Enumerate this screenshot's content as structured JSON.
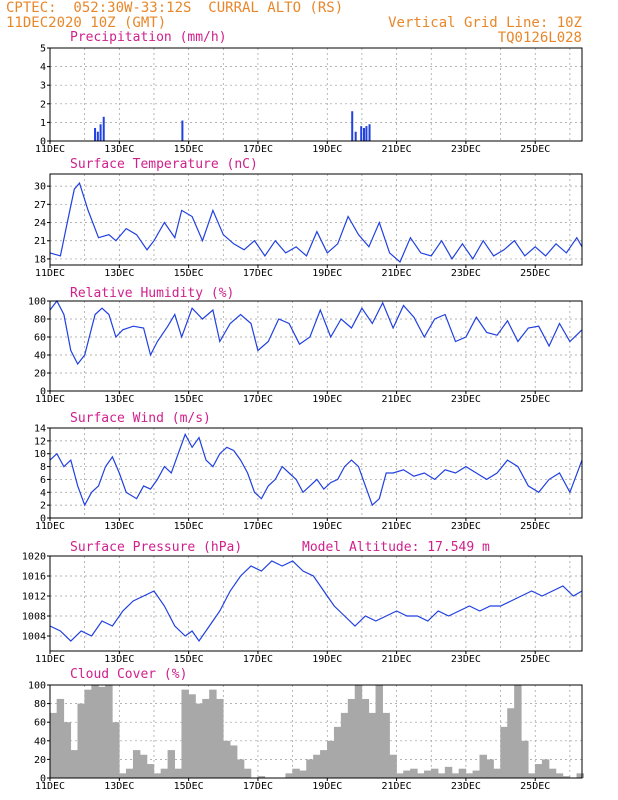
{
  "header": {
    "line1_left": "CPTEC:  052:30W-33:12S  CURRAL ALTO (RS)",
    "line2_left": "11DEC2020 10Z (GMT)",
    "line2_right": "Vertical Grid Line: 10Z",
    "line3_right": "TQ0126L028"
  },
  "colors": {
    "header": "#e8872a",
    "title": "#d0208c",
    "series": "#2040e0",
    "cloud": "#a8a8a8",
    "grid": "#9a9a9a"
  },
  "chart_data": [
    {
      "type": "bar",
      "title": "Precipitation (mm/h)",
      "x_range_days": [
        11,
        26.35
      ],
      "ylim": [
        0,
        5
      ],
      "yticks": [
        0,
        1,
        2,
        3,
        4,
        5
      ],
      "xtick_labels": [
        "11DEC",
        "13DEC",
        "15DEC",
        "17DEC",
        "19DEC",
        "21DEC",
        "23DEC",
        "25DEC"
      ],
      "x": [
        12.3,
        12.38,
        12.46,
        12.55,
        14.82,
        19.72,
        19.82,
        19.98,
        20.06,
        20.13,
        20.22
      ],
      "values": [
        0.7,
        0.5,
        0.9,
        1.3,
        1.1,
        1.6,
        0.5,
        0.8,
        0.7,
        0.8,
        0.9
      ]
    },
    {
      "type": "line",
      "title": "Surface Temperature (nC)",
      "ylim": [
        17,
        32
      ],
      "yticks": [
        18,
        21,
        24,
        27,
        30
      ],
      "xtick_labels": [
        "11DEC",
        "13DEC",
        "15DEC",
        "17DEC",
        "19DEC",
        "21DEC",
        "23DEC",
        "25DEC"
      ],
      "x": [
        11,
        11.3,
        11.5,
        11.7,
        11.85,
        12.1,
        12.4,
        12.7,
        12.9,
        13.2,
        13.5,
        13.8,
        14.0,
        14.3,
        14.6,
        14.8,
        15.1,
        15.4,
        15.7,
        16.0,
        16.3,
        16.6,
        16.9,
        17.2,
        17.5,
        17.8,
        18.1,
        18.4,
        18.7,
        19.0,
        19.3,
        19.6,
        19.9,
        20.2,
        20.5,
        20.8,
        21.1,
        21.4,
        21.7,
        22.0,
        22.3,
        22.6,
        22.9,
        23.2,
        23.5,
        23.8,
        24.1,
        24.4,
        24.7,
        25.0,
        25.3,
        25.6,
        25.9,
        26.2,
        26.35
      ],
      "values": [
        19,
        18.5,
        24,
        29.5,
        30.5,
        26,
        21.5,
        22,
        21,
        23,
        22,
        19.5,
        21,
        24,
        21.5,
        26,
        25,
        21,
        26,
        22,
        20.5,
        19.5,
        21,
        18.5,
        21,
        19,
        20,
        18.5,
        22.5,
        19,
        20.5,
        25,
        22,
        20,
        24,
        19,
        17.5,
        21.5,
        19,
        18.5,
        21,
        18,
        20.5,
        18,
        21,
        18.5,
        19.5,
        21,
        18.5,
        20,
        18.5,
        20.5,
        19,
        21.5,
        20
      ]
    },
    {
      "type": "line",
      "title": "Relative Humidity (%)",
      "ylim": [
        0,
        100
      ],
      "yticks": [
        0,
        20,
        40,
        60,
        80,
        100
      ],
      "xtick_labels": [
        "11DEC",
        "13DEC",
        "15DEC",
        "17DEC",
        "19DEC",
        "21DEC",
        "23DEC",
        "25DEC"
      ],
      "x": [
        11,
        11.2,
        11.4,
        11.6,
        11.8,
        12.0,
        12.3,
        12.5,
        12.7,
        12.9,
        13.1,
        13.4,
        13.7,
        13.9,
        14.1,
        14.4,
        14.6,
        14.8,
        15.1,
        15.4,
        15.7,
        15.9,
        16.2,
        16.5,
        16.8,
        17.0,
        17.3,
        17.6,
        17.9,
        18.2,
        18.5,
        18.8,
        19.1,
        19.4,
        19.7,
        20.0,
        20.3,
        20.6,
        20.9,
        21.2,
        21.5,
        21.8,
        22.1,
        22.4,
        22.7,
        23.0,
        23.3,
        23.6,
        23.9,
        24.2,
        24.5,
        24.8,
        25.1,
        25.4,
        25.7,
        26.0,
        26.35
      ],
      "values": [
        90,
        100,
        85,
        45,
        30,
        40,
        85,
        92,
        85,
        60,
        68,
        72,
        70,
        40,
        55,
        72,
        85,
        60,
        92,
        80,
        90,
        55,
        75,
        85,
        75,
        45,
        55,
        80,
        75,
        52,
        60,
        90,
        60,
        80,
        70,
        92,
        75,
        98,
        70,
        95,
        82,
        60,
        80,
        85,
        55,
        60,
        82,
        65,
        62,
        78,
        55,
        70,
        72,
        50,
        75,
        55,
        68
      ]
    },
    {
      "type": "line",
      "title": "Surface Wind (m/s)",
      "ylim": [
        0,
        14
      ],
      "yticks": [
        0,
        2,
        4,
        6,
        8,
        10,
        12,
        14
      ],
      "xtick_labels": [
        "11DEC",
        "13DEC",
        "15DEC",
        "17DEC",
        "19DEC",
        "21DEC",
        "23DEC",
        "25DEC"
      ],
      "x": [
        11,
        11.2,
        11.4,
        11.6,
        11.8,
        12.0,
        12.2,
        12.4,
        12.6,
        12.8,
        13.0,
        13.2,
        13.5,
        13.7,
        13.9,
        14.1,
        14.3,
        14.5,
        14.7,
        14.9,
        15.1,
        15.3,
        15.5,
        15.7,
        15.9,
        16.1,
        16.3,
        16.5,
        16.7,
        16.9,
        17.1,
        17.3,
        17.5,
        17.7,
        17.9,
        18.1,
        18.3,
        18.5,
        18.7,
        18.9,
        19.1,
        19.3,
        19.5,
        19.7,
        19.9,
        20.1,
        20.3,
        20.5,
        20.7,
        20.9,
        21.2,
        21.5,
        21.8,
        22.1,
        22.4,
        22.7,
        23.0,
        23.3,
        23.6,
        23.9,
        24.2,
        24.5,
        24.8,
        25.1,
        25.4,
        25.7,
        26.0,
        26.35
      ],
      "values": [
        9,
        10,
        8,
        9,
        5,
        2,
        4,
        5,
        8,
        9.5,
        7,
        4,
        3,
        5,
        4.5,
        6,
        8,
        7,
        10,
        13,
        11,
        12.5,
        9,
        8,
        10,
        11,
        10.5,
        9,
        7,
        4,
        3,
        5,
        6,
        8,
        7,
        6,
        4,
        5,
        6,
        4.5,
        5.5,
        6,
        8,
        9,
        8,
        5,
        2,
        3,
        7,
        7,
        7.5,
        6.5,
        7,
        6,
        7.5,
        7,
        8,
        7,
        6,
        7,
        9,
        8,
        5,
        4,
        6,
        7,
        4,
        9
      ]
    },
    {
      "type": "line",
      "title": "Surface Pressure (hPa)",
      "annotation": "Model Altitude: 17.549 m",
      "ylim": [
        1001,
        1020
      ],
      "yticks": [
        1004,
        1008,
        1012,
        1016,
        1020
      ],
      "xtick_labels": [
        "11DEC",
        "13DEC",
        "15DEC",
        "17DEC",
        "19DEC",
        "21DEC",
        "23DEC",
        "25DEC"
      ],
      "x": [
        11,
        11.3,
        11.6,
        11.9,
        12.2,
        12.5,
        12.8,
        13.1,
        13.4,
        13.7,
        14.0,
        14.3,
        14.6,
        14.9,
        15.1,
        15.3,
        15.6,
        15.9,
        16.2,
        16.5,
        16.8,
        17.1,
        17.4,
        17.7,
        18.0,
        18.3,
        18.6,
        18.9,
        19.2,
        19.5,
        19.8,
        20.1,
        20.4,
        20.7,
        21.0,
        21.3,
        21.6,
        21.9,
        22.2,
        22.5,
        22.8,
        23.1,
        23.4,
        23.7,
        24.0,
        24.3,
        24.6,
        24.9,
        25.2,
        25.5,
        25.8,
        26.1,
        26.35
      ],
      "values": [
        1006,
        1005,
        1003,
        1005,
        1004,
        1007,
        1006,
        1009,
        1011,
        1012,
        1013,
        1010,
        1006,
        1004,
        1005,
        1003,
        1006,
        1009,
        1013,
        1016,
        1018,
        1017,
        1019,
        1018,
        1019,
        1017,
        1016,
        1013,
        1010,
        1008,
        1006,
        1008,
        1007,
        1008,
        1009,
        1008,
        1008,
        1007,
        1009,
        1008,
        1009,
        1010,
        1009,
        1010,
        1010,
        1011,
        1012,
        1013,
        1012,
        1013,
        1014,
        1012,
        1013
      ]
    },
    {
      "type": "bar",
      "title": "Cloud Cover (%)",
      "ylim": [
        0,
        100
      ],
      "yticks": [
        0,
        20,
        40,
        60,
        80,
        100
      ],
      "xtick_labels": [
        "11DEC",
        "13DEC",
        "15DEC",
        "17DEC",
        "19DEC",
        "21DEC",
        "23DEC",
        "25DEC"
      ],
      "x": [
        11.1,
        11.3,
        11.5,
        11.7,
        11.9,
        12.1,
        12.3,
        12.5,
        12.7,
        12.9,
        13.1,
        13.3,
        13.5,
        13.7,
        13.9,
        14.1,
        14.3,
        14.5,
        14.7,
        14.9,
        15.1,
        15.3,
        15.5,
        15.7,
        15.9,
        16.1,
        16.3,
        16.5,
        16.7,
        16.9,
        17.1,
        17.3,
        17.5,
        17.7,
        17.9,
        18.1,
        18.3,
        18.5,
        18.7,
        18.9,
        19.1,
        19.3,
        19.5,
        19.7,
        19.9,
        20.1,
        20.3,
        20.5,
        20.7,
        20.9,
        21.1,
        21.3,
        21.5,
        21.7,
        21.9,
        22.1,
        22.3,
        22.5,
        22.7,
        22.9,
        23.1,
        23.3,
        23.5,
        23.7,
        23.9,
        24.1,
        24.3,
        24.5,
        24.7,
        24.9,
        25.1,
        25.3,
        25.5,
        25.7,
        25.9,
        26.1,
        26.3
      ],
      "values": [
        70,
        85,
        60,
        30,
        80,
        95,
        100,
        98,
        100,
        60,
        5,
        10,
        30,
        25,
        15,
        5,
        10,
        30,
        10,
        95,
        90,
        80,
        85,
        95,
        85,
        40,
        35,
        20,
        10,
        0,
        2,
        0,
        0,
        0,
        5,
        10,
        8,
        20,
        25,
        30,
        40,
        55,
        70,
        85,
        100,
        85,
        70,
        100,
        70,
        25,
        5,
        8,
        10,
        5,
        8,
        10,
        5,
        12,
        5,
        10,
        5,
        8,
        25,
        20,
        10,
        55,
        75,
        100,
        40,
        5,
        15,
        20,
        10,
        5,
        2,
        0,
        5
      ]
    }
  ]
}
